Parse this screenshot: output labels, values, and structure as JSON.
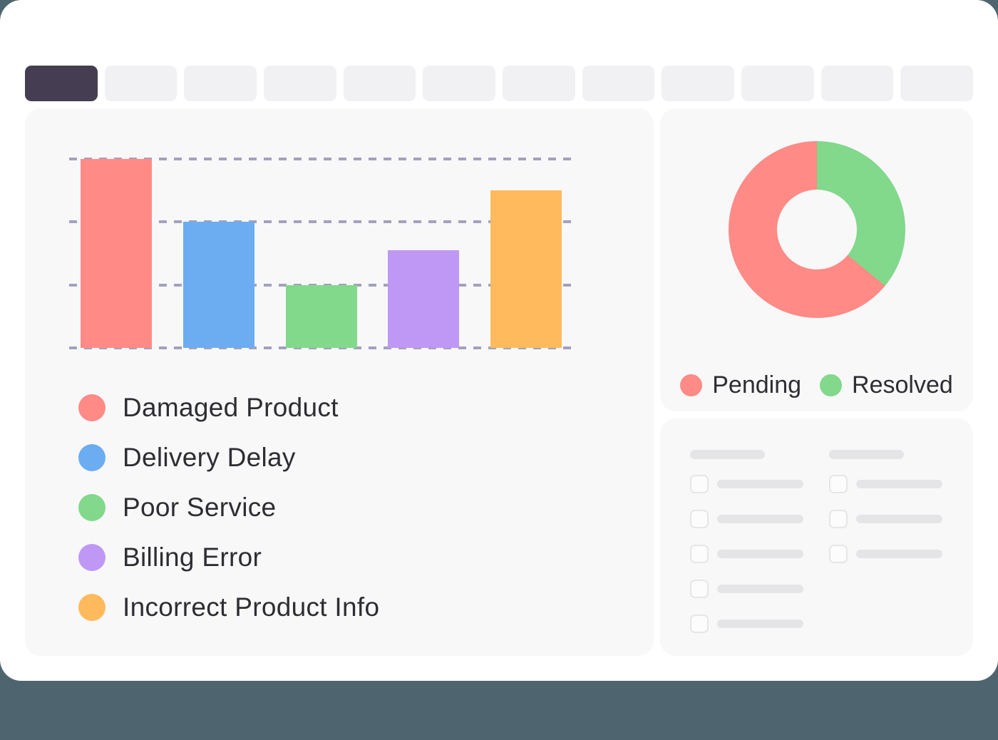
{
  "theme": {
    "page_bg": "#4E6570",
    "card_bg": "#FFFFFF",
    "panel_bg": "#F8F8F9",
    "tab_active": "#453E52",
    "tab_inactive": "#F1F1F4",
    "gridline": "#A3A1BD",
    "text_color": "#2D2D33",
    "pill": "#E5E5E8",
    "checkbox_border": "#E6E6E8"
  },
  "tab_bar": {
    "tab_count": 12,
    "active_tab_index": 0
  },
  "chart_data": [
    {
      "type": "bar",
      "title": "",
      "xlabel": "",
      "ylabel": "",
      "categories": [
        "Damaged Product",
        "Delivery Delay",
        "Poor Service",
        "Billing Error",
        "Incorrect Product Info"
      ],
      "values": [
        3,
        2,
        1,
        1.55,
        2.5
      ],
      "colors": [
        "#FF8A86",
        "#6CADF2",
        "#82D88B",
        "#BF98F5",
        "#FFBA5E"
      ],
      "ylim": [
        0,
        3
      ],
      "grid": "horizontal-dashed",
      "gridline_count": 4,
      "legend_position": "bottom-left"
    },
    {
      "type": "pie",
      "subtype": "donut",
      "title": "",
      "segments": [
        {
          "label": "Pending",
          "value": 64,
          "color": "#FF8A86"
        },
        {
          "label": "Resolved",
          "value": 36,
          "color": "#82D88B"
        }
      ],
      "start_angle_deg": 0,
      "direction": "clockwise",
      "first_segment_at_top": "Resolved",
      "inner_radius_ratio": 0.45,
      "legend_position": "bottom-center"
    }
  ],
  "skeleton_panel": {
    "columns": [
      {
        "has_header": true,
        "row_count": 5
      },
      {
        "has_header": true,
        "row_count": 3
      }
    ]
  }
}
